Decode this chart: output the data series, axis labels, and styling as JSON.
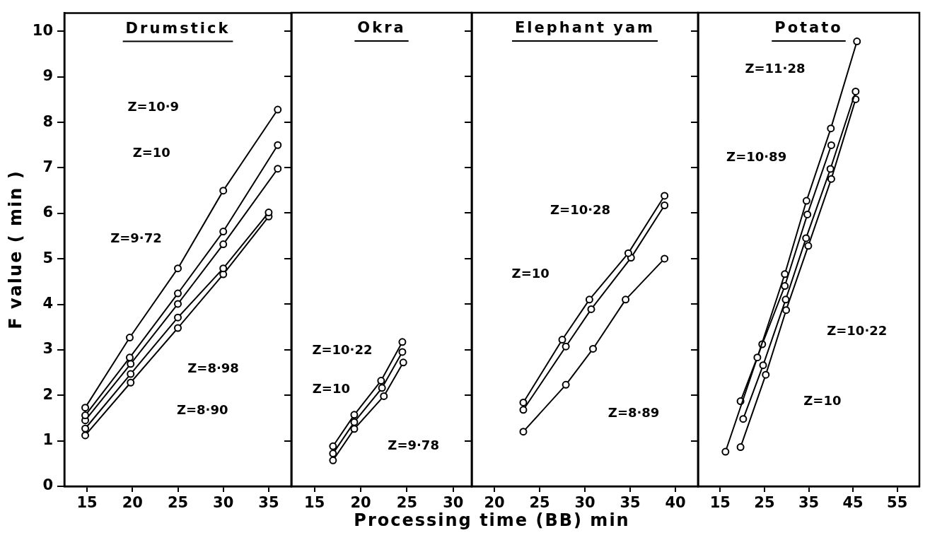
{
  "chart_data": [
    {
      "type": "line",
      "title": "Drumstick",
      "ylabel": "F value ( min )",
      "xlabel": "Processing time (BB) min",
      "xlim": [
        12.5,
        37.5
      ],
      "xticks": [
        15,
        20,
        25,
        30,
        35
      ],
      "ylim": [
        0,
        10.4
      ],
      "yticks": [
        0,
        1,
        2,
        3,
        4,
        5,
        6,
        7,
        8,
        9,
        10
      ],
      "grid": false,
      "marker": "circle",
      "line_style": "solid",
      "series": [
        {
          "color": "#000000",
          "x": [
            14.8,
            19.7,
            25,
            30,
            36
          ],
          "values": [
            1.73,
            3.27,
            4.79,
            6.5,
            8.28
          ]
        },
        {
          "color": "#000000",
          "x": [
            14.8,
            19.7,
            25,
            30,
            36
          ],
          "values": [
            1.56,
            2.83,
            4.24,
            5.6,
            7.5
          ]
        },
        {
          "color": "#000000",
          "x": [
            14.8,
            19.8,
            25,
            30,
            36
          ],
          "values": [
            1.45,
            2.69,
            4.01,
            5.32,
            6.98
          ]
        },
        {
          "color": "#000000",
          "x": [
            14.8,
            19.8,
            25,
            30,
            35
          ],
          "values": [
            1.27,
            2.47,
            3.71,
            4.79,
            6.02
          ]
        },
        {
          "color": "#000000",
          "x": [
            14.8,
            19.8,
            25,
            30,
            35
          ],
          "values": [
            1.12,
            2.28,
            3.48,
            4.66,
            5.93
          ]
        }
      ],
      "annotations": [
        "Z=10·9",
        "Z=10",
        "Z=9·72",
        "Z=8·98",
        "Z=8·90"
      ]
    },
    {
      "type": "line",
      "title": "Okra",
      "xlim": [
        12.5,
        32
      ],
      "xticks": [
        15,
        20,
        25,
        30
      ],
      "ylim": [
        0,
        10.4
      ],
      "yticks": [
        0,
        1,
        2,
        3,
        4,
        5,
        6,
        7,
        8,
        9,
        10
      ],
      "tick_labels": "x",
      "grid": false,
      "marker": "circle",
      "line_style": "solid",
      "series": [
        {
          "color": "#000000",
          "x": [
            17,
            19.3,
            22.2,
            24.5
          ],
          "values": [
            0.88,
            1.57,
            2.32,
            3.17
          ]
        },
        {
          "color": "#000000",
          "x": [
            17,
            19.3,
            22.3,
            24.5
          ],
          "values": [
            0.72,
            1.41,
            2.16,
            2.95
          ]
        },
        {
          "color": "#000000",
          "x": [
            17,
            19.3,
            22.5,
            24.6
          ],
          "values": [
            0.57,
            1.26,
            1.98,
            2.72
          ]
        }
      ],
      "annotations": [
        "Z=10·22",
        "Z=10",
        "Z=9·78"
      ]
    },
    {
      "type": "line",
      "title": "Elephant yam",
      "xlim": [
        17.5,
        42.5
      ],
      "xticks": [
        20,
        25,
        30,
        35,
        40
      ],
      "ylim": [
        0,
        10.4
      ],
      "yticks": [
        0,
        1,
        2,
        3,
        4,
        5,
        6,
        7,
        8,
        9,
        10
      ],
      "tick_labels": "x",
      "grid": false,
      "marker": "circle",
      "line_style": "solid",
      "series": [
        {
          "color": "#000000",
          "x": [
            23.2,
            27.5,
            30.5,
            34.8,
            38.8
          ],
          "values": [
            1.84,
            3.22,
            4.1,
            5.12,
            6.38
          ]
        },
        {
          "color": "#000000",
          "x": [
            23.2,
            27.9,
            30.7,
            35.1,
            38.8
          ],
          "values": [
            1.68,
            3.07,
            3.89,
            5.02,
            6.17
          ]
        },
        {
          "color": "#000000",
          "x": [
            23.2,
            27.9,
            30.9,
            34.5,
            38.8
          ],
          "values": [
            1.2,
            2.23,
            3.02,
            4.1,
            5.0
          ]
        }
      ],
      "annotations": [
        "Z=10·28",
        "Z=10",
        "Z=8·89"
      ]
    },
    {
      "type": "line",
      "title": "Potato",
      "xlim": [
        10,
        60
      ],
      "xticks": [
        15,
        25,
        35,
        45,
        55
      ],
      "ylim": [
        0,
        10.4
      ],
      "yticks": [
        0,
        1,
        2,
        3,
        4,
        5,
        6,
        7,
        8,
        9,
        10
      ],
      "tick_labels": "x",
      "grid": false,
      "marker": "circle",
      "line_style": "solid",
      "series": [
        {
          "color": "#000000",
          "x": [
            16.2,
            23.4,
            29.6,
            34.5,
            40,
            45.9
          ],
          "values": [
            0.76,
            2.83,
            4.66,
            6.27,
            7.86,
            9.77
          ]
        },
        {
          "color": "#000000",
          "x": [
            19.6,
            24.5,
            29.6,
            34.7,
            40.1
          ],
          "values": [
            1.87,
            3.12,
            4.4,
            5.97,
            7.49
          ]
        },
        {
          "color": "#000000",
          "x": [
            20.2,
            24.7,
            29.8,
            34.4,
            39.9,
            45.6
          ],
          "values": [
            1.48,
            2.66,
            4.1,
            5.45,
            6.97,
            8.67
          ]
        },
        {
          "color": "#000000",
          "x": [
            19.6,
            25.3,
            29.9,
            34.9,
            40.1,
            45.6
          ],
          "values": [
            0.86,
            2.45,
            3.87,
            5.28,
            6.75,
            8.5
          ]
        }
      ],
      "annotations": [
        "Z=11·28",
        "Z=10·89",
        "Z=10·22",
        "Z=10"
      ]
    }
  ]
}
